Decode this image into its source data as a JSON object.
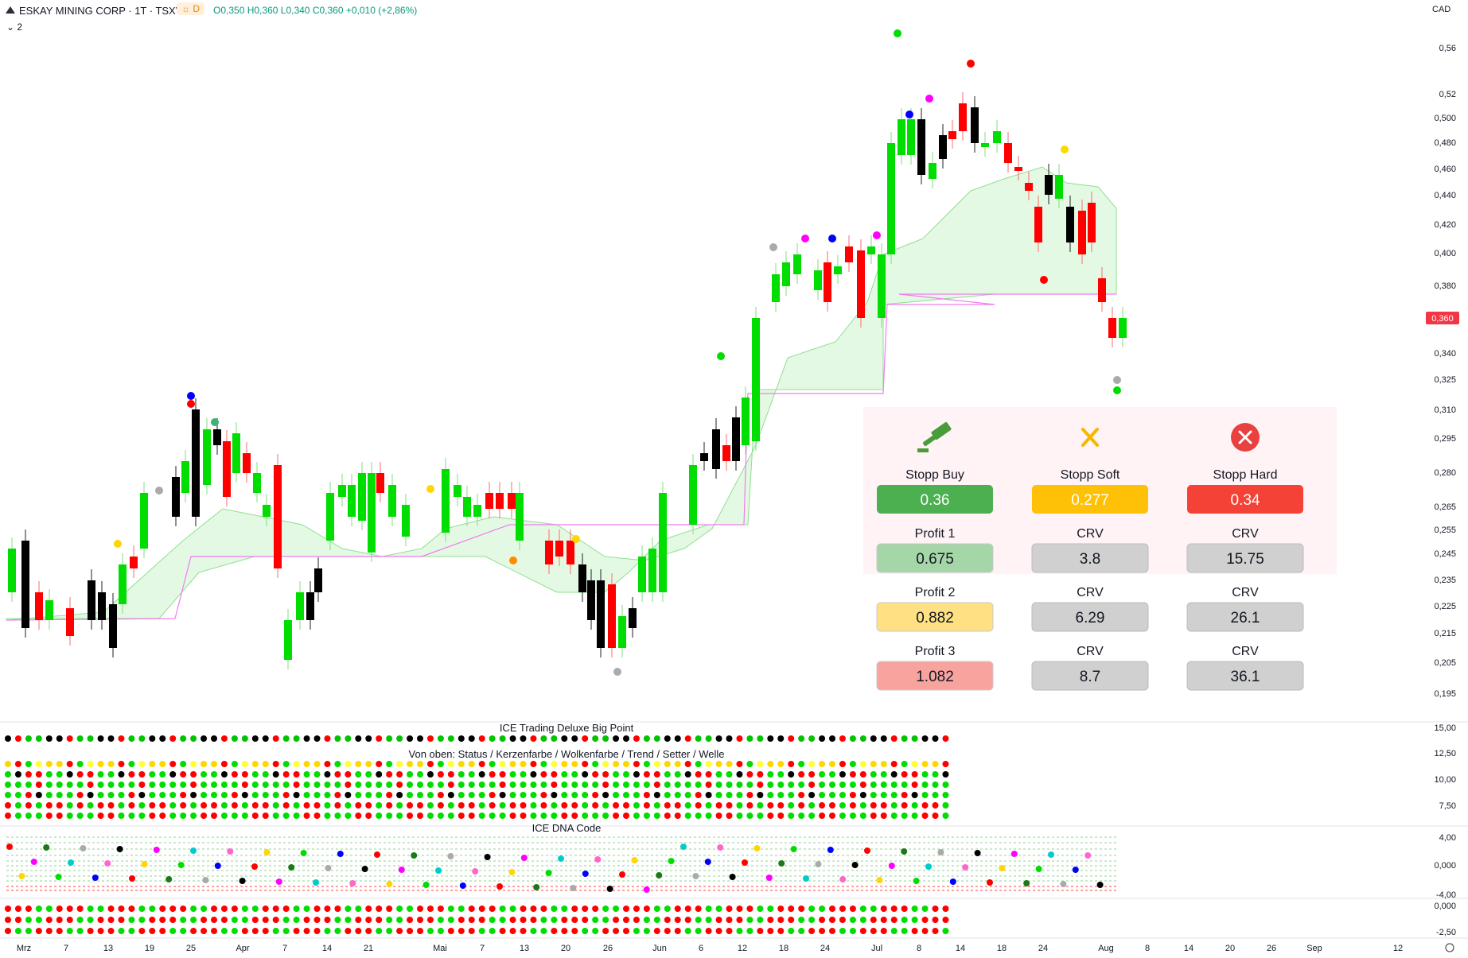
{
  "header": {
    "symbol_title": "ESKAY MINING CORP · 1T · TSXV",
    "session_badge": "D",
    "ohlc": {
      "open": "O0,350",
      "high": "H0,360",
      "low": "L0,340",
      "close": "C0,360",
      "change": "+0,010 (+2,86%)"
    },
    "indicator_count": "2",
    "currency": "CAD"
  },
  "colors": {
    "up": "#00dd00",
    "down": "#ff0000",
    "black": "#000000",
    "cloud": "#e6fbe6",
    "pink_line": "#f07cf0",
    "price_badge": "#f23645",
    "red_text": "#e03030",
    "green_text": "#089981"
  },
  "price_axis": {
    "ticks": [
      "0,56",
      "0,52",
      "0,500",
      "0,480",
      "0,460",
      "0,440",
      "0,420",
      "0,400",
      "0,380",
      "0,360",
      "0,340",
      "0,325",
      "0,310",
      "0,295",
      "0,280",
      "0,265",
      "0,255",
      "0,245",
      "0,235",
      "0,225",
      "0,215",
      "0,205",
      "0,195"
    ],
    "current_price": "0,360"
  },
  "time_axis": {
    "labels": [
      "Mrz",
      "7",
      "13",
      "19",
      "25",
      "Apr",
      "7",
      "14",
      "21",
      "Mai",
      "7",
      "13",
      "20",
      "26",
      "Jun",
      "6",
      "12",
      "18",
      "24",
      "Jul",
      "8",
      "14",
      "18",
      "24",
      "Aug",
      "8",
      "14",
      "20",
      "26",
      "Sep",
      "12"
    ]
  },
  "stop_panel": {
    "headers": [
      "Stopp Buy",
      "Stopp Soft",
      "Stopp Hard"
    ],
    "stops": [
      "0.36",
      "0.277",
      "0.34"
    ],
    "profit_rows": [
      {
        "label": "Profit 1",
        "value": "0.675",
        "crv_label_1": "CRV",
        "crv_1": "3.8",
        "crv_label_2": "CRV",
        "crv_2": "15.75"
      },
      {
        "label": "Profit 2",
        "value": "0.882",
        "crv_label_1": "CRV",
        "crv_1": "6.29",
        "crv_label_2": "CRV",
        "crv_2": "26.1"
      },
      {
        "label": "Profit 3",
        "value": "1.082",
        "crv_label_1": "CRV",
        "crv_1": "8.7",
        "crv_label_2": "CRV",
        "crv_2": "36.1"
      }
    ],
    "icons": [
      "gavel-icon",
      "x-mark-icon",
      "x-circle-icon"
    ]
  },
  "indicator_panels": {
    "big_point": {
      "title": "ICE Trading Deluxe Big Point",
      "scale": [
        "15,00",
        "12,50",
        "10,00",
        "7,50"
      ]
    },
    "status_legend": {
      "title": "Von oben: Status / Kerzenfarbe / Wolkenfarbe / Trend / Setter / Welle"
    },
    "dna": {
      "title": "ICE DNA Code",
      "scale": [
        "4,00",
        "0,000",
        "-4,00"
      ]
    },
    "bottom": {
      "scale": [
        "0,000",
        "-2,50"
      ]
    }
  }
}
